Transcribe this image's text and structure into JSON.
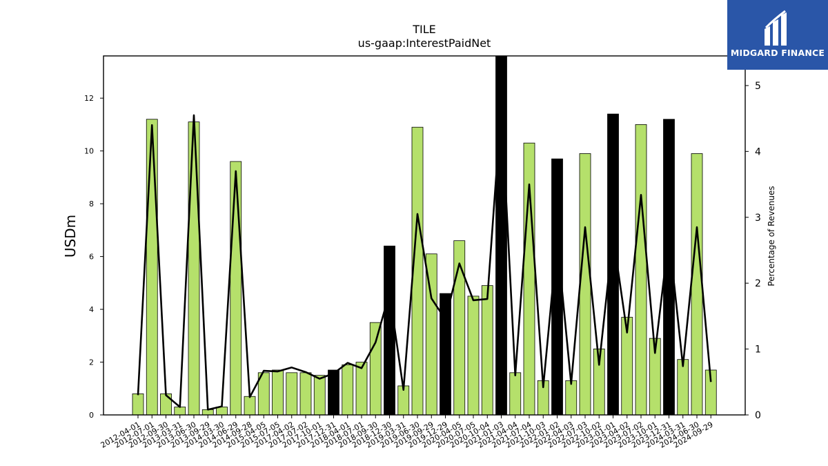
{
  "title": "TILE",
  "subtitle": "us-gaap:InterestPaidNet",
  "logo": {
    "text": "MIDGARD FINANCE",
    "bg": "#2a56a8"
  },
  "chart_data": {
    "type": "bar",
    "ylabel": "USDm",
    "y2label": "Percentage of Revenues",
    "ylim": [
      0,
      13.6
    ],
    "y2lim": [
      0,
      5.45
    ],
    "yticks": [
      0,
      2,
      4,
      6,
      8,
      10,
      12
    ],
    "y2ticks": [
      0,
      1,
      2,
      3,
      4,
      5
    ],
    "colors": {
      "normal": "#b5e06b",
      "highlight": "#000000",
      "line": "#000000"
    },
    "categories": [
      "2012-04-01",
      "2012-07-01",
      "2012-09-30",
      "2013-03-31",
      "2013-06-30",
      "2013-09-29",
      "2014-03-30",
      "2014-06-29",
      "2014-09-28",
      "2015-04-05",
      "2015-07-05",
      "2017-04-02",
      "2017-07-02",
      "2017-10-01",
      "2017-12-31",
      "2018-04-01",
      "2018-07-01",
      "2018-09-30",
      "2018-12-30",
      "2019-03-31",
      "2019-06-30",
      "2019-09-29",
      "2019-12-29",
      "2020-04-05",
      "2020-07-05",
      "2020-10-04",
      "2021-01-03",
      "2021-04-04",
      "2021-07-04",
      "2021-10-03",
      "2022-01-02",
      "2022-04-03",
      "2022-07-03",
      "2022-10-02",
      "2023-01-01",
      "2023-04-02",
      "2023-07-02",
      "2023-10-01",
      "2023-12-31",
      "2024-03-31",
      "2024-06-30",
      "2024-09-29"
    ],
    "values": [
      0.8,
      11.2,
      0.8,
      0.3,
      11.1,
      0.2,
      0.3,
      9.6,
      0.7,
      1.6,
      1.7,
      1.6,
      1.6,
      1.5,
      1.7,
      1.9,
      2.0,
      3.5,
      6.4,
      1.1,
      10.9,
      6.1,
      4.6,
      6.6,
      4.5,
      4.9,
      13.6,
      1.6,
      10.3,
      1.3,
      9.7,
      1.3,
      9.9,
      2.5,
      11.4,
      3.7,
      11.0,
      2.9,
      11.2,
      2.1,
      9.9,
      1.7
    ],
    "highlighted": [
      false,
      false,
      false,
      false,
      false,
      false,
      false,
      false,
      false,
      false,
      false,
      false,
      false,
      false,
      true,
      false,
      false,
      false,
      true,
      false,
      false,
      false,
      true,
      false,
      false,
      false,
      true,
      false,
      false,
      false,
      true,
      false,
      false,
      false,
      true,
      false,
      false,
      false,
      true,
      false,
      false,
      false
    ],
    "pct_revenues": [
      0.3,
      4.4,
      0.3,
      0.12,
      4.55,
      0.08,
      0.13,
      3.7,
      0.27,
      0.67,
      0.66,
      0.72,
      0.65,
      0.55,
      0.63,
      0.79,
      0.71,
      1.1,
      1.85,
      0.38,
      3.05,
      1.77,
      1.45,
      2.3,
      1.74,
      1.76,
      4.7,
      0.6,
      3.5,
      0.42,
      2.66,
      0.47,
      2.85,
      0.76,
      2.72,
      1.25,
      3.34,
      0.94,
      2.72,
      0.74,
      2.85,
      0.5
    ]
  }
}
